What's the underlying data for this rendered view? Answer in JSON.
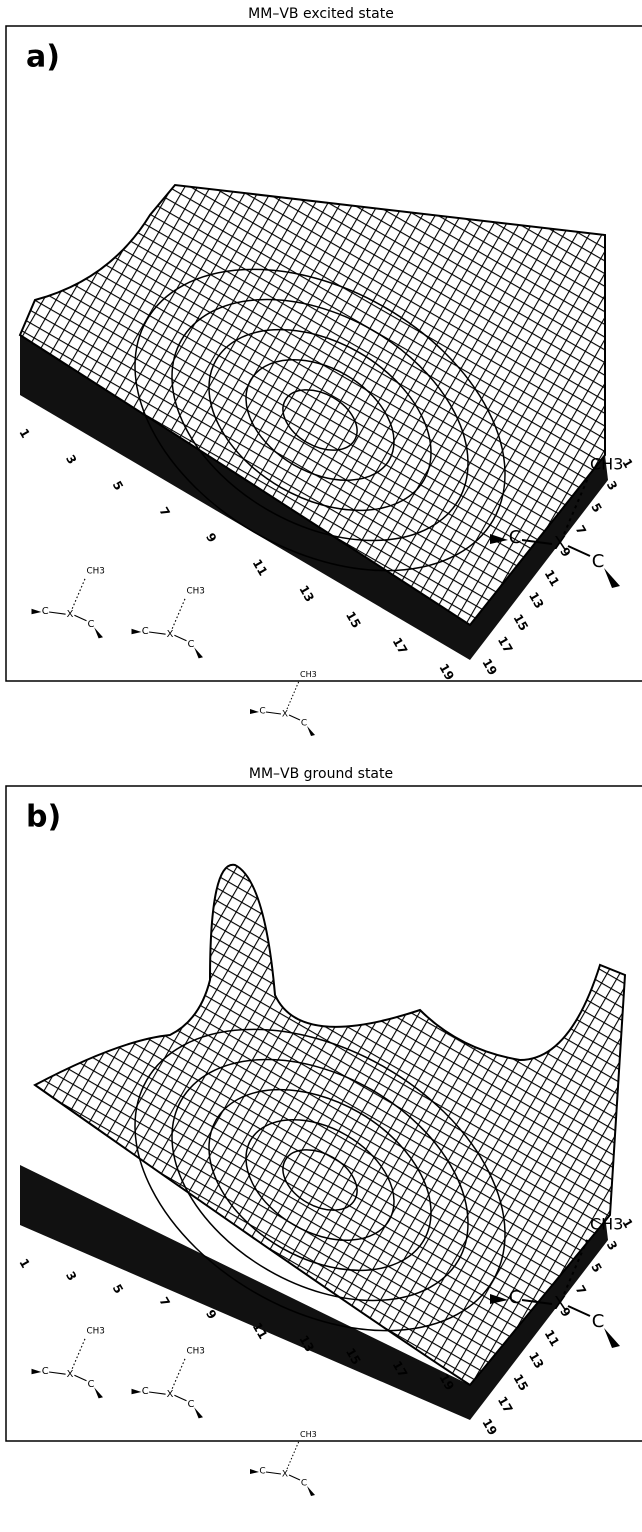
{
  "panels": [
    {
      "title": "MM–VB excited state",
      "label": "a)",
      "front_ticks": [
        "1",
        "3",
        "5",
        "7",
        "9",
        "11",
        "13",
        "15",
        "17",
        "19"
      ],
      "side_ticks": [
        "19",
        "17",
        "15",
        "13",
        "11",
        "9",
        "7",
        "5",
        "3",
        "1"
      ],
      "molecules": [
        {
          "methyl": "CH3",
          "left": "C",
          "center": "X",
          "right": "C"
        },
        {
          "methyl": "CH3",
          "left": "C",
          "center": "X",
          "right": "C"
        },
        {
          "methyl": "CH3",
          "left": "C",
          "center": "X",
          "right": "C"
        },
        {
          "methyl": "CH3",
          "left": "C",
          "center": "X",
          "right": "C"
        }
      ]
    },
    {
      "title": "MM–VB ground state",
      "label": "b)",
      "front_ticks": [
        "1",
        "3",
        "5",
        "7",
        "9",
        "11",
        "13",
        "15",
        "17",
        "19"
      ],
      "side_ticks": [
        "19",
        "17",
        "15",
        "13",
        "11",
        "9",
        "7",
        "5",
        "3",
        "1"
      ],
      "molecules": [
        {
          "methyl": "CH3",
          "left": "C",
          "center": "X",
          "right": "C"
        },
        {
          "methyl": "CH3",
          "left": "C",
          "center": "X",
          "right": "C"
        },
        {
          "methyl": "CH3",
          "left": "C",
          "center": "X",
          "right": "C"
        },
        {
          "methyl": "CH3",
          "left": "C",
          "center": "X",
          "right": "C"
        }
      ]
    }
  ]
}
